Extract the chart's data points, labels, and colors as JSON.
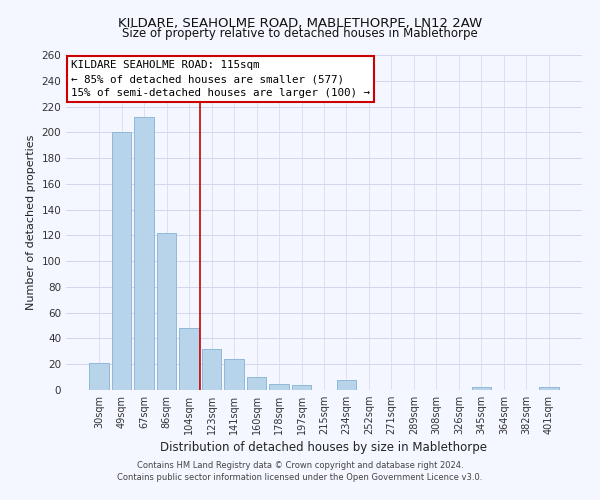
{
  "title": "KILDARE, SEAHOLME ROAD, MABLETHORPE, LN12 2AW",
  "subtitle": "Size of property relative to detached houses in Mablethorpe",
  "xlabel": "Distribution of detached houses by size in Mablethorpe",
  "ylabel": "Number of detached properties",
  "bar_labels": [
    "30sqm",
    "49sqm",
    "67sqm",
    "86sqm",
    "104sqm",
    "123sqm",
    "141sqm",
    "160sqm",
    "178sqm",
    "197sqm",
    "215sqm",
    "234sqm",
    "252sqm",
    "271sqm",
    "289sqm",
    "308sqm",
    "326sqm",
    "345sqm",
    "364sqm",
    "382sqm",
    "401sqm"
  ],
  "bar_values": [
    21,
    200,
    212,
    122,
    48,
    32,
    24,
    10,
    5,
    4,
    0,
    8,
    0,
    0,
    0,
    0,
    0,
    2,
    0,
    0,
    2
  ],
  "bar_color": "#b8d4ea",
  "bar_edge_color": "#90b8d8",
  "vline_color": "#cc0000",
  "annotation_title": "KILDARE SEAHOLME ROAD: 115sqm",
  "annotation_line1": "← 85% of detached houses are smaller (577)",
  "annotation_line2": "15% of semi-detached houses are larger (100) →",
  "annotation_box_facecolor": "white",
  "annotation_box_edgecolor": "#cc0000",
  "ylim": [
    0,
    260
  ],
  "yticks": [
    0,
    20,
    40,
    60,
    80,
    100,
    120,
    140,
    160,
    180,
    200,
    220,
    240,
    260
  ],
  "footer_line1": "Contains HM Land Registry data © Crown copyright and database right 2024.",
  "footer_line2": "Contains public sector information licensed under the Open Government Licence v3.0.",
  "background_color": "#f4f7ff",
  "grid_color": "#d0d8ee",
  "title_color": "#111111",
  "label_color": "#222222",
  "tick_color": "#333333"
}
